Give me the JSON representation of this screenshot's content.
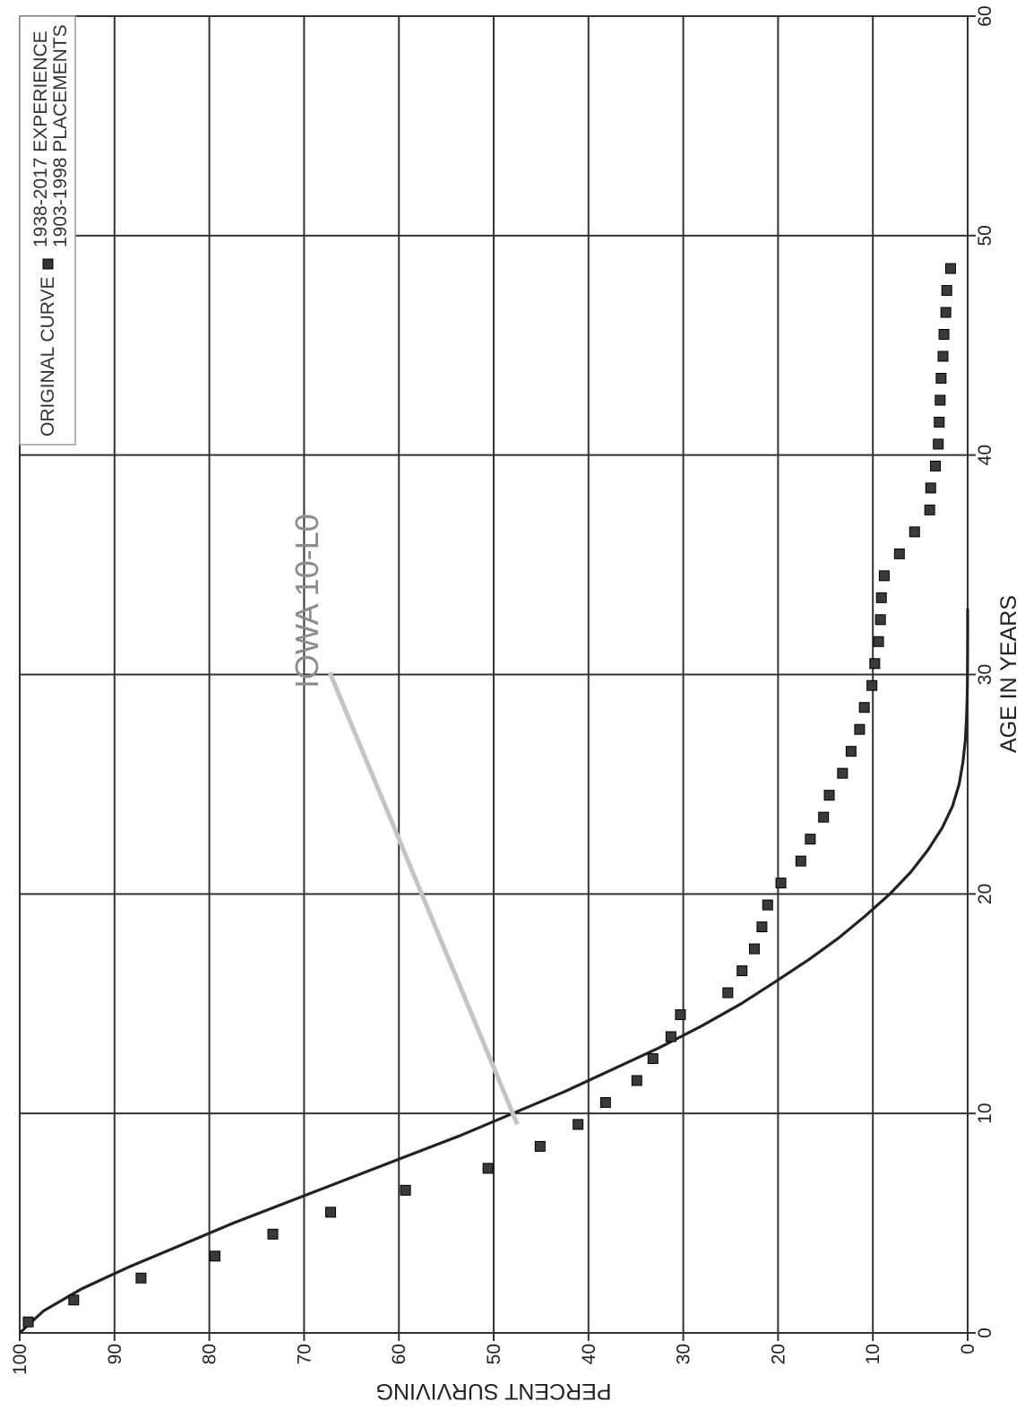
{
  "chart_data": {
    "type": "scatter",
    "orientation": "rotated-90-clockwise",
    "xlabel": "AGE IN YEARS",
    "ylabel": "PERCENT SURVIVING",
    "xlim": [
      0,
      60
    ],
    "ylim": [
      0,
      100
    ],
    "x_ticks": [
      "0",
      "10",
      "20",
      "30",
      "40",
      "50",
      "60"
    ],
    "y_ticks": [
      "0",
      "10",
      "20",
      "30",
      "40",
      "50",
      "60",
      "70",
      "80",
      "90",
      "100"
    ],
    "grid": true,
    "legend_position": "top-right",
    "annotation": {
      "text": "IOWA 10-L0",
      "points_to": {
        "x": 9.5,
        "y": 47.5
      }
    },
    "series": [
      {
        "name": "ORIGINAL CURVE",
        "kind": "line",
        "x": [
          0,
          1,
          2,
          3,
          4,
          5,
          6,
          7,
          8,
          9,
          10,
          11,
          12,
          13,
          14,
          15,
          16,
          17,
          18,
          19,
          20,
          21,
          22,
          23,
          24,
          25,
          26,
          27,
          28,
          29,
          30,
          31,
          32,
          33
        ],
        "y": [
          100,
          97.5,
          93.5,
          88.5,
          83,
          77.5,
          71.5,
          65.5,
          59.5,
          53.5,
          48,
          42.5,
          37.5,
          32.5,
          28,
          23.9,
          20.3,
          16.8,
          13.6,
          10.8,
          8.2,
          6,
          4.2,
          2.7,
          1.6,
          0.9,
          0.5,
          0.25,
          0.12,
          0.05,
          0.02,
          0.01,
          0,
          0
        ]
      },
      {
        "name": "1938-2017 EXPERIENCE",
        "kind": "markers",
        "x": [
          0.5,
          1.5,
          2.5,
          3.5,
          4.5,
          5.5,
          6.5,
          7.5,
          8.5,
          9.5,
          10.5,
          11.5,
          12.5,
          13.5,
          14.5,
          15.5,
          16.5,
          17.5,
          18.5,
          19.5,
          20.5,
          21.5,
          22.5,
          23.5,
          24.5,
          25.5,
          26.5,
          27.5,
          28.5,
          29.5,
          30.5,
          31.5,
          32.5,
          33.5,
          34.5,
          35.5,
          36.5,
          37.5,
          38.5,
          39.5,
          40.5,
          41.5,
          42.5,
          43.5,
          44.5,
          45.5,
          46.5,
          47.5,
          48.5
        ],
        "y": [
          99.1,
          94.3,
          87.2,
          79.4,
          73.3,
          67.2,
          59.3,
          50.6,
          45.1,
          41.1,
          38.2,
          34.9,
          33.2,
          31.3,
          30.3,
          25.3,
          23.8,
          22.5,
          21.7,
          21.1,
          19.7,
          17.6,
          16.6,
          15.2,
          14.6,
          13.2,
          12.3,
          11.4,
          10.9,
          10.1,
          9.8,
          9.4,
          9.2,
          9.1,
          8.8,
          7.2,
          5.6,
          4,
          3.9,
          3.4,
          3.1,
          3.0,
          2.9,
          2.8,
          2.6,
          2.5,
          2.3,
          2.2,
          1.8
        ]
      }
    ]
  }
}
